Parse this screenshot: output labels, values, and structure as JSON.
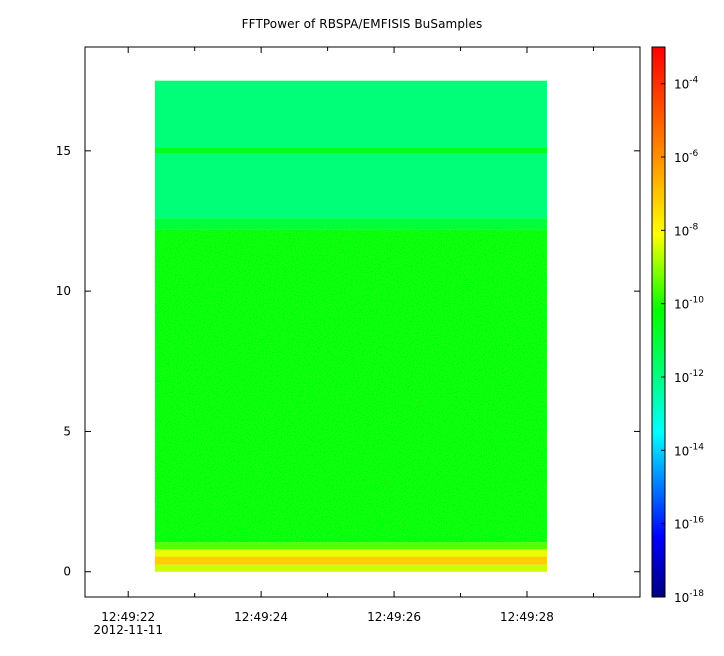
{
  "chart_data": {
    "type": "heatmap",
    "title": "FFTPower of RBSPA/EMFISIS  BuSamples",
    "xlabel": "",
    "ylabel": "",
    "x_axis": {
      "type": "time",
      "tick_labels": [
        "12:49:22",
        "12:49:24",
        "12:49:26",
        "12:49:28"
      ],
      "tick_values_seconds": [
        0,
        2,
        4,
        6
      ],
      "date_label": "2012-11-11",
      "xlim_seconds": [
        -0.65,
        7.7
      ],
      "data_extent_seconds": [
        0.4,
        6.3
      ]
    },
    "y_axis": {
      "tick_labels": [
        "0",
        "5",
        "10",
        "15"
      ],
      "tick_values": [
        0,
        5,
        10,
        15
      ],
      "ylim": [
        -0.9,
        18.7
      ],
      "data_extent": [
        0,
        17.5
      ]
    },
    "colorbar": {
      "scale": "log",
      "range": [
        1e-18,
        0.001
      ],
      "ticks": [
        {
          "base": "10",
          "exp": "-4",
          "value": 0.0001
        },
        {
          "base": "10",
          "exp": "-6",
          "value": 1e-06
        },
        {
          "base": "10",
          "exp": "-8",
          "value": 1e-08
        },
        {
          "base": "10",
          "exp": "-10",
          "value": 1e-10
        },
        {
          "base": "10",
          "exp": "-12",
          "value": 1e-12
        },
        {
          "base": "10",
          "exp": "-14",
          "value": 1e-14
        },
        {
          "base": "10",
          "exp": "-16",
          "value": 1e-16
        },
        {
          "base": "10",
          "exp": "-18",
          "value": 1e-18
        }
      ]
    },
    "bands": [
      {
        "y_range": [
          0,
          0.25
        ],
        "log10_power": -8.5
      },
      {
        "y_range": [
          0.25,
          0.55
        ],
        "log10_power": -7.2
      },
      {
        "y_range": [
          0.55,
          0.8
        ],
        "log10_power": -8.3
      },
      {
        "y_range": [
          0.8,
          1.05
        ],
        "log10_power": -9.5
      },
      {
        "y_range": [
          1.05,
          12.2
        ],
        "log10_power": -10.4
      },
      {
        "y_range": [
          12.2,
          12.6
        ],
        "log10_power": -11.0
      },
      {
        "y_range": [
          12.6,
          14.9
        ],
        "log10_power": -11.9
      },
      {
        "y_range": [
          14.9,
          15.1
        ],
        "log10_power": -10.6
      },
      {
        "y_range": [
          15.1,
          17.5
        ],
        "log10_power": -11.9
      }
    ],
    "grid": false,
    "legend": "colorbar-right"
  }
}
